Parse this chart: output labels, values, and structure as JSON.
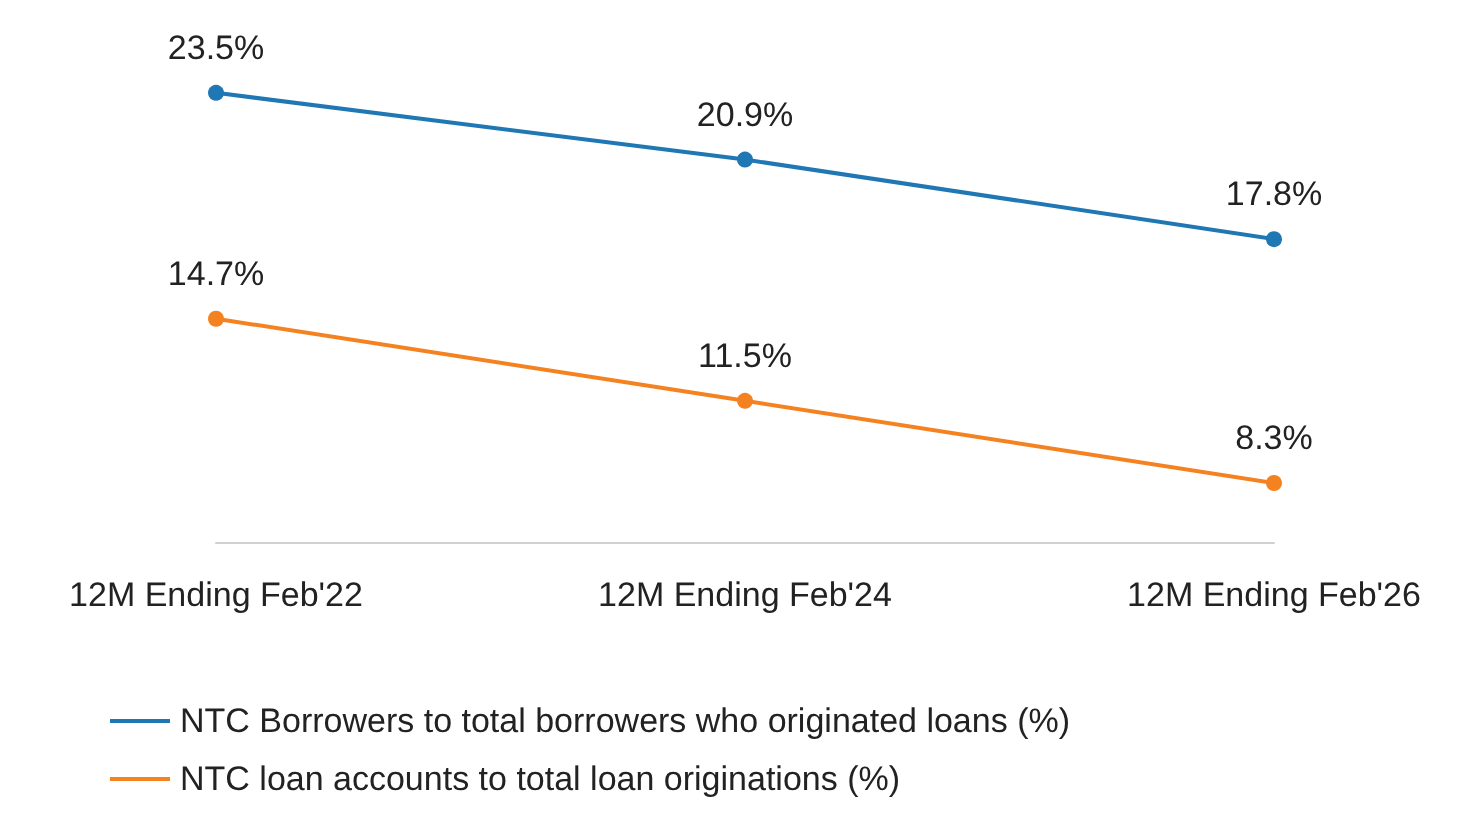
{
  "chart_data": {
    "type": "line",
    "categories": [
      "12M Ending Feb'22",
      "12M Ending Feb'24",
      "12M Ending Feb'26"
    ],
    "series": [
      {
        "name": "NTC Borrowers to total borrowers who originated loans (%)",
        "color": "#1f77b4",
        "values": [
          23.5,
          20.9,
          17.8
        ],
        "value_labels": [
          "23.5%",
          "20.9%",
          "17.8%"
        ]
      },
      {
        "name": "NTC loan accounts to total loan originations (%)",
        "color": "#f58220",
        "values": [
          14.7,
          11.5,
          8.3
        ],
        "value_labels": [
          "14.7%",
          "11.5%",
          "8.3%"
        ]
      }
    ],
    "legend": "bottom",
    "marker": "circle",
    "grid": false
  }
}
